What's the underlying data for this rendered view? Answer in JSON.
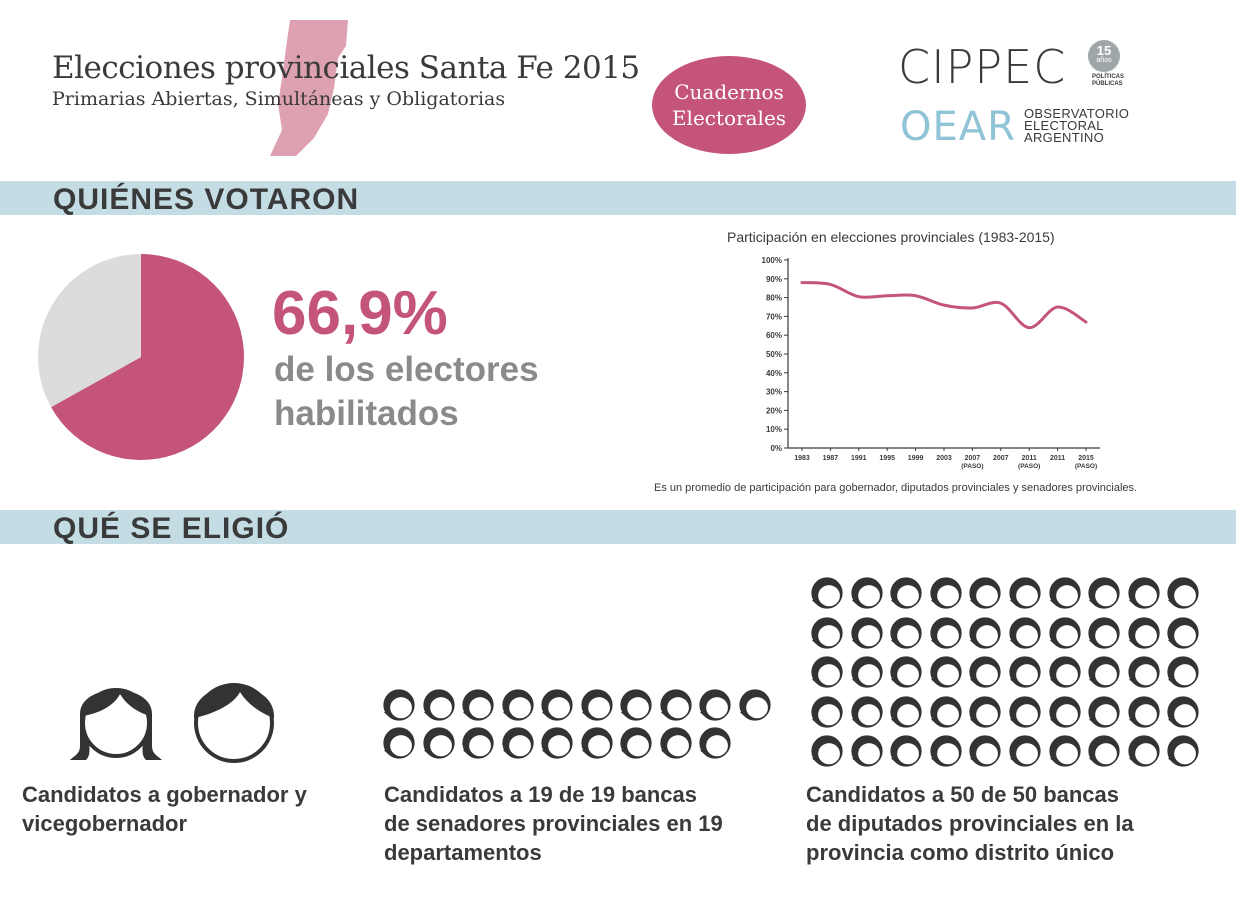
{
  "header": {
    "title": "Elecciones provinciales Santa Fe 2015",
    "subtitle": "Primarias Abiertas, Simultáneas y Obligatorias",
    "badge_line1": "Cuadernos",
    "badge_line2": "Electorales",
    "logo_cippec": "CIPPEC",
    "logo_anniv_num": "15",
    "logo_anniv_word": "años",
    "logo_pp1": "POLÍTICAS",
    "logo_pp2": "PÚBLICAS",
    "logo_oear": "OEAR",
    "oear_line1": "OBSERVATORIO",
    "oear_line2": "ELECTORAL",
    "oear_line3": "ARGENTINO"
  },
  "colors": {
    "accent": "#c4547a",
    "band": "#c4dde5",
    "pie_rest": "#dcdcdc",
    "map": "#dea1b1",
    "oear": "#8fc3d6"
  },
  "sections": {
    "votaron": "QUIÉNES VOTARON",
    "eligio": "QUÉ SE ELIGIÓ"
  },
  "stat": {
    "value": "66,9%",
    "line1": "de los electores",
    "line2": "habilitados"
  },
  "chart_data": [
    {
      "type": "pie",
      "values": [
        66.9,
        33.1
      ],
      "colors": [
        "#c4547a",
        "#dcdcdc"
      ]
    },
    {
      "type": "line",
      "title": "Participación en elecciones provinciales (1983-2015)",
      "categories": [
        [
          "1983"
        ],
        [
          "1987"
        ],
        [
          "1991"
        ],
        [
          "1995"
        ],
        [
          "1999"
        ],
        [
          "2003"
        ],
        [
          "2007",
          "(PASO)"
        ],
        [
          "2007"
        ],
        [
          "2011",
          "(PASO)"
        ],
        [
          "2011"
        ],
        [
          "2015",
          "(PASO)"
        ]
      ],
      "values": [
        88,
        87,
        80.5,
        81,
        81,
        76,
        74.5,
        77,
        64,
        75,
        67
      ],
      "yticks": [
        "0%",
        "10%",
        "20%",
        "30%",
        "40%",
        "50%",
        "60%",
        "70%",
        "80%",
        "90%",
        "100%"
      ],
      "ylim": [
        0,
        100
      ],
      "color": "#c4547a",
      "note": "Es un promedio de participación para gobernador, diputados provinciales y senadores provinciales."
    }
  ],
  "candidates": {
    "gov": {
      "count": 2,
      "caption_l1": "Candidatos a gobernador y",
      "caption_l2": "vicegobernador"
    },
    "sen": {
      "count": 19,
      "caption_l1": "Candidatos a 19 de 19 bancas",
      "caption_l2": "de senadores provinciales en 19",
      "caption_l3": "departamentos"
    },
    "dip": {
      "count": 50,
      "caption_l1": "Candidatos a 50 de 50 bancas",
      "caption_l2": "de diputados provinciales en la",
      "caption_l3": "provincia como distrito único"
    }
  }
}
